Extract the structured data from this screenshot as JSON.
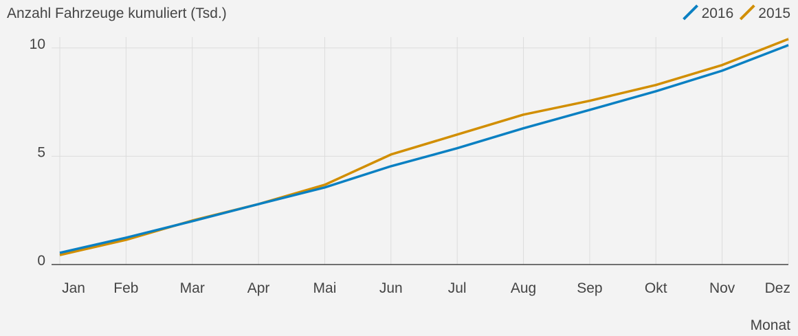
{
  "chart_data": {
    "type": "line",
    "title": "Anzahl Fahrzeuge kumuliert  (Tsd.)",
    "x_label": "Monat",
    "categories": [
      "Jan",
      "Feb",
      "Mar",
      "Apr",
      "Mai",
      "Jun",
      "Jul",
      "Aug",
      "Sep",
      "Okt",
      "Nov",
      "Dez"
    ],
    "series": [
      {
        "name": "2016",
        "color": "#0a80c2",
        "values": [
          0.54,
          1.24,
          2.0,
          2.79,
          3.56,
          4.54,
          5.37,
          6.29,
          7.14,
          8.0,
          8.95,
          10.13
        ]
      },
      {
        "name": "2015",
        "color": "#d18e00",
        "values": [
          0.44,
          1.14,
          2.03,
          2.79,
          3.68,
          5.08,
          6.0,
          6.92,
          7.56,
          8.29,
          9.21,
          10.41
        ]
      }
    ],
    "ylim": [
      0,
      10.5
    ],
    "yticks": [
      0,
      5,
      10
    ],
    "grid": true,
    "legend": "top-right"
  }
}
